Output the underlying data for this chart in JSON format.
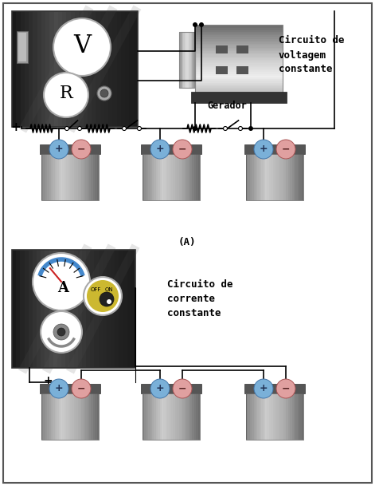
{
  "title_top": "Circuito de\nvoltagem\nconstante",
  "title_bottom": "Circuito de\ncorrente\nconstante",
  "label_generator": "Gerador",
  "label_A": "(A)",
  "bg_color": "#ffffff",
  "font_family": "monospace"
}
